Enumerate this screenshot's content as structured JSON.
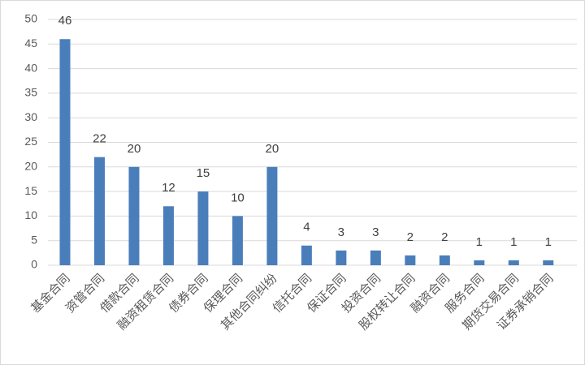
{
  "chart_data": {
    "type": "bar",
    "categories": [
      "基金合同",
      "资管合同",
      "借款合同",
      "融资租赁合同",
      "债券合同",
      "保理合同",
      "其他合同纠纷",
      "信托合同",
      "保证合同",
      "投资合同",
      "股权转让合同",
      "融资合同",
      "服务合同",
      "期货交易合同",
      "证券承销合同"
    ],
    "values": [
      46,
      22,
      20,
      12,
      15,
      10,
      20,
      4,
      3,
      3,
      2,
      2,
      1,
      1,
      1
    ],
    "color": "#4a7ebb",
    "ylim": [
      0,
      50
    ],
    "yticks": [
      0,
      5,
      10,
      15,
      20,
      25,
      30,
      35,
      40,
      45,
      50
    ],
    "grid": true
  }
}
